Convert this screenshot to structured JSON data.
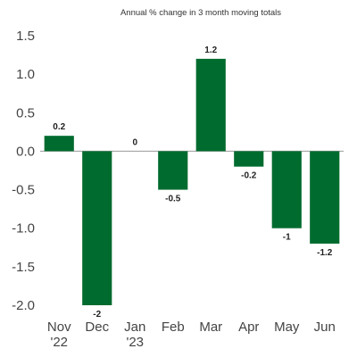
{
  "colors": {
    "bar": "#006b2e",
    "axis": "#999999",
    "text": "#444444"
  },
  "chart_data": {
    "type": "bar",
    "title": "Annual % change in 3 month moving totals",
    "xlabel": "",
    "ylabel": "",
    "ylim": [
      -2.0,
      1.5
    ],
    "yticks": [
      "1.5",
      "1.0",
      "0.5",
      "0.0",
      "-0.5",
      "-1.0",
      "-1.5",
      "-2.0"
    ],
    "ytick_values": [
      1.5,
      1.0,
      0.5,
      0.0,
      -0.5,
      -1.0,
      -1.5,
      -2.0
    ],
    "categories": [
      {
        "line1": "Nov",
        "line2": "'22"
      },
      {
        "line1": "Dec",
        "line2": ""
      },
      {
        "line1": "Jan",
        "line2": "'23"
      },
      {
        "line1": "Feb",
        "line2": ""
      },
      {
        "line1": "Mar",
        "line2": ""
      },
      {
        "line1": "Apr",
        "line2": ""
      },
      {
        "line1": "May",
        "line2": ""
      },
      {
        "line1": "Jun",
        "line2": ""
      }
    ],
    "values": [
      0.2,
      -2,
      0,
      -0.5,
      1.2,
      -0.2,
      -1,
      -1.2
    ],
    "data_labels": [
      "0.2",
      "-2",
      "0",
      "-0.5",
      "1.2",
      "-0.2",
      "-1",
      "-1.2"
    ],
    "grid": false,
    "legend": "none"
  }
}
